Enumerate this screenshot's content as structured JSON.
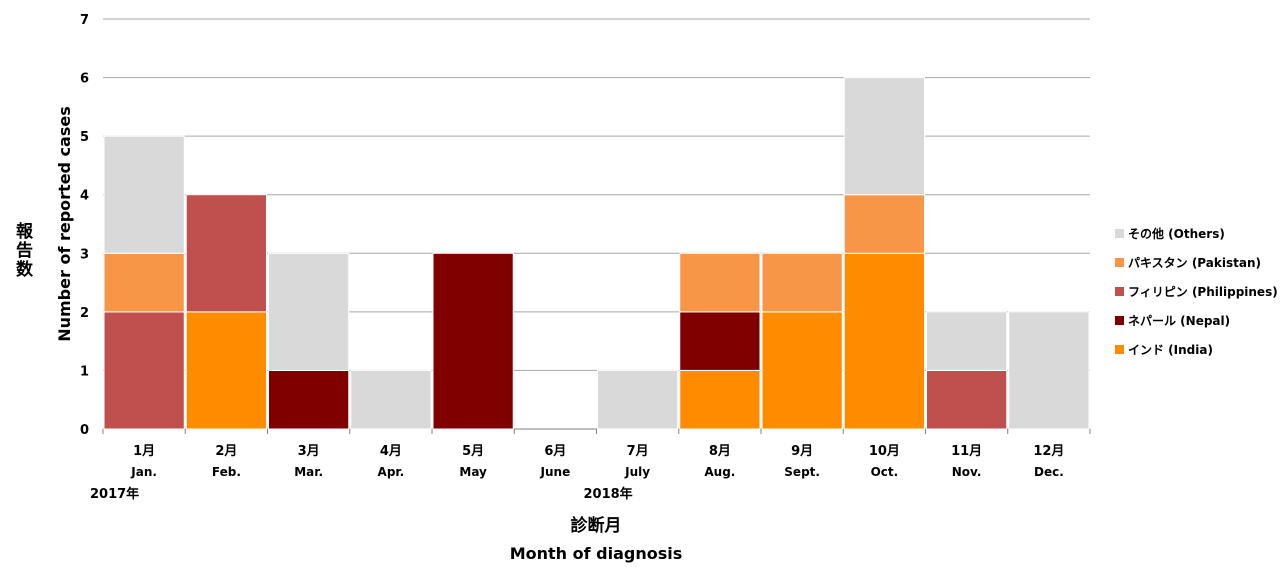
{
  "chart_data": {
    "type": "bar",
    "stacked": true,
    "title": "",
    "ylabel_jp": "報告数",
    "ylabel_en": "Number of reported cases",
    "xlabel_jp": "診断月",
    "xlabel_en": "Month of diagnosis",
    "ylim": [
      0,
      7
    ],
    "yticks": [
      "0",
      "1",
      "2",
      "3",
      "4",
      "5",
      "6",
      "7"
    ],
    "grid": true,
    "legend_position": "right",
    "categories_jp": [
      "1月",
      "2月",
      "3月",
      "4月",
      "5月",
      "6月",
      "7月",
      "8月",
      "9月",
      "10月",
      "11月",
      "12月"
    ],
    "categories_en": [
      "Jan.",
      "Feb.",
      "Mar.",
      "Apr.",
      "May",
      "June",
      "July",
      "Aug.",
      "Sept.",
      "Oct.",
      "Nov.",
      "Dec."
    ],
    "year_labels": [
      {
        "text": "2017年",
        "category_index": 0
      },
      {
        "text": "2018年",
        "category_index": 6
      }
    ],
    "series": [
      {
        "name": "インド (India)",
        "color": "#FF8C00",
        "values": [
          0,
          2,
          0,
          0,
          0,
          0,
          0,
          1,
          2,
          3,
          0,
          0
        ]
      },
      {
        "name": "ネパール (Nepal)",
        "color": "#800000",
        "values": [
          0,
          0,
          1,
          0,
          3,
          0,
          0,
          1,
          0,
          0,
          0,
          0
        ]
      },
      {
        "name": "フィリピン (Philippines)",
        "color": "#C0504D",
        "values": [
          2,
          2,
          0,
          0,
          0,
          0,
          0,
          0,
          0,
          0,
          1,
          0
        ]
      },
      {
        "name": "パキスタン (Pakistan)",
        "color": "#F79646",
        "values": [
          1,
          0,
          0,
          0,
          0,
          0,
          0,
          1,
          1,
          1,
          0,
          0
        ]
      },
      {
        "name": "その他 (Others)",
        "color": "#D9D9D9",
        "values": [
          2,
          0,
          2,
          1,
          0,
          0,
          1,
          0,
          0,
          2,
          1,
          2
        ]
      }
    ],
    "legend_order": [
      4,
      3,
      2,
      1,
      0
    ]
  }
}
